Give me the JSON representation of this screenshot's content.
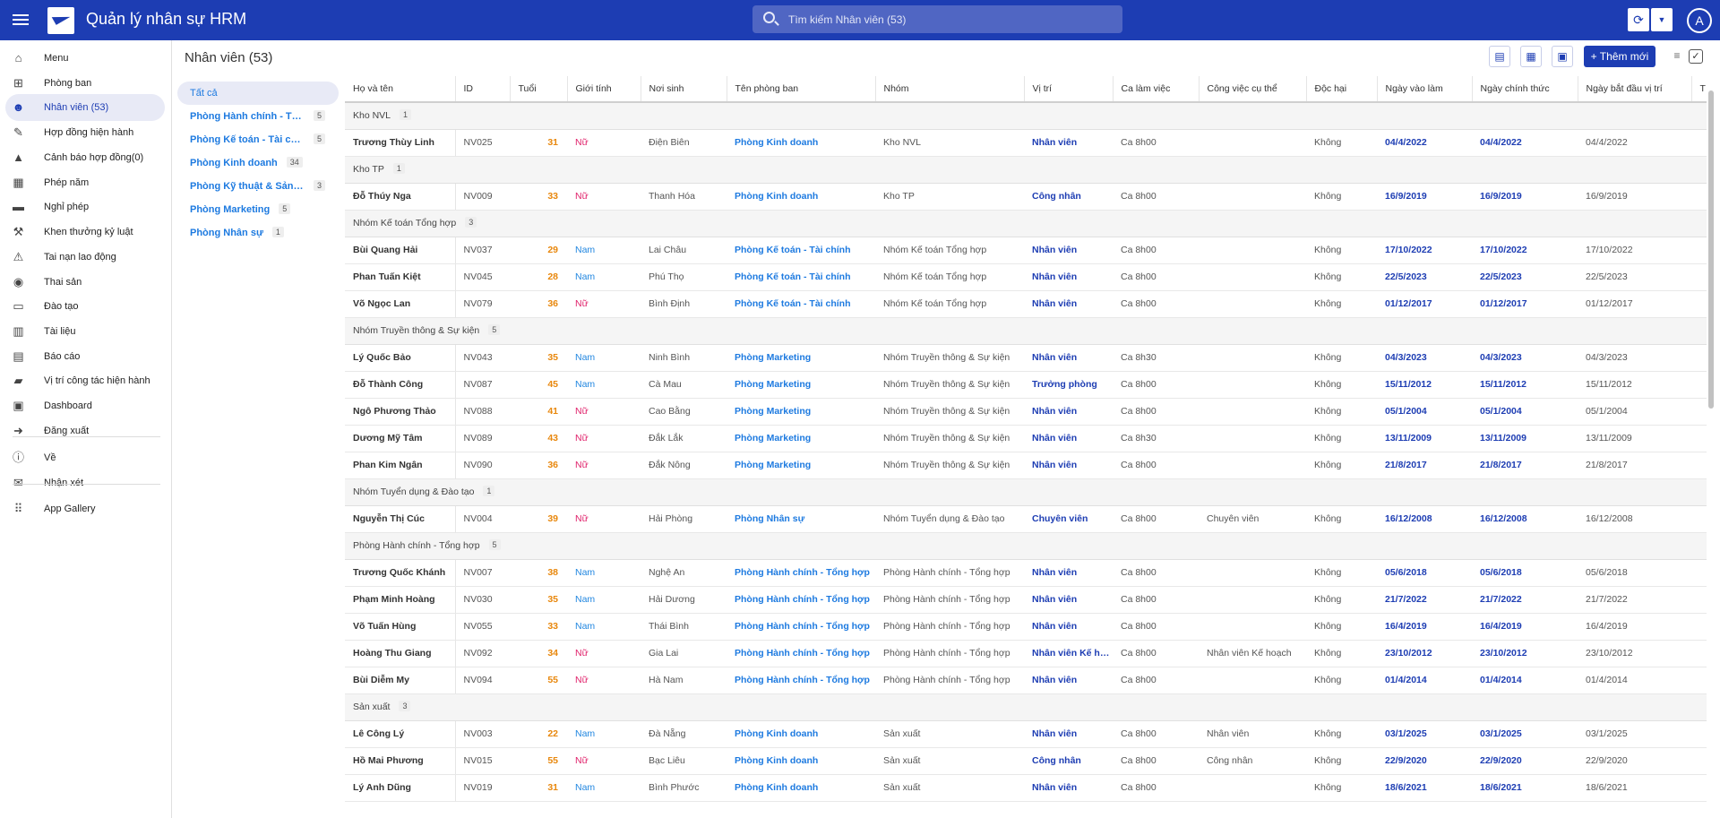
{
  "app": {
    "title": "Quản lý nhân sự HRM",
    "search_placeholder": "Tìm kiếm Nhân viên (53)",
    "avatar": "A"
  },
  "sidebar": [
    {
      "label": "Menu",
      "icon": "home-icon"
    },
    {
      "label": "Phòng ban",
      "icon": "org-chart-icon"
    },
    {
      "label": "Nhân viên (53)",
      "icon": "people-icon",
      "active": true
    },
    {
      "label": "Hợp đồng hiện hành",
      "icon": "contract-icon"
    },
    {
      "label": "Cảnh báo hợp đồng(0)",
      "icon": "warning-icon"
    },
    {
      "label": "Phép năm",
      "icon": "calendar-icon"
    },
    {
      "label": "Nghỉ phép",
      "icon": "bed-icon"
    },
    {
      "label": "Khen thưởng kỷ luật",
      "icon": "gavel-icon"
    },
    {
      "label": "Tai nạn lao động",
      "icon": "accident-icon"
    },
    {
      "label": "Thai sản",
      "icon": "stroller-icon"
    },
    {
      "label": "Đào tạo",
      "icon": "training-icon"
    },
    {
      "label": "Tài liệu",
      "icon": "books-icon"
    },
    {
      "label": "Báo cáo",
      "icon": "report-icon"
    },
    {
      "label": "Vị trí công tác hiện hành",
      "icon": "briefcase-icon"
    },
    {
      "label": "Dashboard",
      "icon": "dashboard-icon"
    },
    {
      "label": "Đăng xuất",
      "icon": "logout-icon"
    },
    {
      "label": "Về",
      "icon": "info-icon"
    },
    {
      "label": "Nhận xét",
      "icon": "feedback-icon"
    },
    {
      "label": "App Gallery",
      "icon": "apps-grid-icon"
    }
  ],
  "header": {
    "title": "Nhân viên (53)",
    "add_label": "+ Thêm mới"
  },
  "groups": [
    {
      "name": "Tất cả",
      "count": ""
    },
    {
      "name": "Phòng Hành chính - Tổng hợp",
      "count": "5"
    },
    {
      "name": "Phòng Kế toán - Tài chính",
      "count": "5"
    },
    {
      "name": "Phòng Kinh doanh",
      "count": "34"
    },
    {
      "name": "Phòng Kỹ thuật & Sản xuất",
      "count": "3"
    },
    {
      "name": "Phòng Marketing",
      "count": "5"
    },
    {
      "name": "Phòng Nhân sự",
      "count": "1"
    }
  ],
  "columns": [
    "Họ và tên",
    "ID",
    "Tuổi",
    "Giới tính",
    "Nơi sinh",
    "Tên phòng ban",
    "Nhóm",
    "Vị trí",
    "Ca làm việc",
    "Công việc cụ thể",
    "Độc hại",
    "Ngày vào làm",
    "Ngày chính thức",
    "Ngày bắt đầu vị trí",
    "T"
  ],
  "table": [
    {
      "group": "Kho NVL",
      "count": "1",
      "rows": [
        [
          "Trương Thùy Linh",
          "NV025",
          "31",
          "Nữ",
          "Điện Biên",
          "Phòng Kinh doanh",
          "Kho NVL",
          "Nhân viên",
          "Ca 8h00",
          "",
          "Không",
          "04/4/2022",
          "04/4/2022",
          "04/4/2022"
        ]
      ]
    },
    {
      "group": "Kho TP",
      "count": "1",
      "rows": [
        [
          "Đỗ Thúy Nga",
          "NV009",
          "33",
          "Nữ",
          "Thanh Hóa",
          "Phòng Kinh doanh",
          "Kho TP",
          "Công nhân",
          "Ca 8h00",
          "",
          "Không",
          "16/9/2019",
          "16/9/2019",
          "16/9/2019"
        ]
      ]
    },
    {
      "group": "Nhóm Kế toán Tổng hợp",
      "count": "3",
      "rows": [
        [
          "Bùi Quang Hải",
          "NV037",
          "29",
          "Nam",
          "Lai Châu",
          "Phòng Kế toán - Tài chính",
          "Nhóm Kế toán Tổng hợp",
          "Nhân viên",
          "Ca 8h00",
          "",
          "Không",
          "17/10/2022",
          "17/10/2022",
          "17/10/2022"
        ],
        [
          "Phan Tuấn Kiệt",
          "NV045",
          "28",
          "Nam",
          "Phú Thọ",
          "Phòng Kế toán - Tài chính",
          "Nhóm Kế toán Tổng hợp",
          "Nhân viên",
          "Ca 8h00",
          "",
          "Không",
          "22/5/2023",
          "22/5/2023",
          "22/5/2023"
        ],
        [
          "Võ Ngọc Lan",
          "NV079",
          "36",
          "Nữ",
          "Bình Định",
          "Phòng Kế toán - Tài chính",
          "Nhóm Kế toán Tổng hợp",
          "Nhân viên",
          "Ca 8h00",
          "",
          "Không",
          "01/12/2017",
          "01/12/2017",
          "01/12/2017"
        ]
      ]
    },
    {
      "group": "Nhóm Truyền thông & Sự kiện",
      "count": "5",
      "rows": [
        [
          "Lý Quốc Bảo",
          "NV043",
          "35",
          "Nam",
          "Ninh Bình",
          "Phòng Marketing",
          "Nhóm Truyền thông & Sự kiện",
          "Nhân viên",
          "Ca 8h30",
          "",
          "Không",
          "04/3/2023",
          "04/3/2023",
          "04/3/2023"
        ],
        [
          "Đỗ Thành Công",
          "NV087",
          "45",
          "Nam",
          "Cà Mau",
          "Phòng Marketing",
          "Nhóm Truyền thông & Sự kiện",
          "Trưởng phòng",
          "Ca 8h00",
          "",
          "Không",
          "15/11/2012",
          "15/11/2012",
          "15/11/2012"
        ],
        [
          "Ngô Phương Thảo",
          "NV088",
          "41",
          "Nữ",
          "Cao Bằng",
          "Phòng Marketing",
          "Nhóm Truyền thông & Sự kiện",
          "Nhân viên",
          "Ca 8h00",
          "",
          "Không",
          "05/1/2004",
          "05/1/2004",
          "05/1/2004"
        ],
        [
          "Dương Mỹ Tâm",
          "NV089",
          "43",
          "Nữ",
          "Đắk Lắk",
          "Phòng Marketing",
          "Nhóm Truyền thông & Sự kiện",
          "Nhân viên",
          "Ca 8h30",
          "",
          "Không",
          "13/11/2009",
          "13/11/2009",
          "13/11/2009"
        ],
        [
          "Phan Kim Ngân",
          "NV090",
          "36",
          "Nữ",
          "Đắk Nông",
          "Phòng Marketing",
          "Nhóm Truyền thông & Sự kiện",
          "Nhân viên",
          "Ca 8h00",
          "",
          "Không",
          "21/8/2017",
          "21/8/2017",
          "21/8/2017"
        ]
      ]
    },
    {
      "group": "Nhóm Tuyển dụng & Đào tạo",
      "count": "1",
      "rows": [
        [
          "Nguyễn Thị Cúc",
          "NV004",
          "39",
          "Nữ",
          "Hải Phòng",
          "Phòng Nhân sự",
          "Nhóm Tuyển dụng & Đào tạo",
          "Chuyên viên",
          "Ca 8h00",
          "Chuyên viên",
          "Không",
          "16/12/2008",
          "16/12/2008",
          "16/12/2008"
        ]
      ]
    },
    {
      "group": "Phòng Hành chính - Tổng hợp",
      "count": "5",
      "rows": [
        [
          "Trương Quốc Khánh",
          "NV007",
          "38",
          "Nam",
          "Nghệ An",
          "Phòng Hành chính - Tổng hợp",
          "Phòng Hành chính - Tổng hợp",
          "Nhân viên",
          "Ca 8h00",
          "",
          "Không",
          "05/6/2018",
          "05/6/2018",
          "05/6/2018"
        ],
        [
          "Phạm Minh Hoàng",
          "NV030",
          "35",
          "Nam",
          "Hải Dương",
          "Phòng Hành chính - Tổng hợp",
          "Phòng Hành chính - Tổng hợp",
          "Nhân viên",
          "Ca 8h00",
          "",
          "Không",
          "21/7/2022",
          "21/7/2022",
          "21/7/2022"
        ],
        [
          "Võ Tuấn Hùng",
          "NV055",
          "33",
          "Nam",
          "Thái Bình",
          "Phòng Hành chính - Tổng hợp",
          "Phòng Hành chính - Tổng hợp",
          "Nhân viên",
          "Ca 8h00",
          "",
          "Không",
          "16/4/2019",
          "16/4/2019",
          "16/4/2019"
        ],
        [
          "Hoàng Thu Giang",
          "NV092",
          "34",
          "Nữ",
          "Gia Lai",
          "Phòng Hành chính - Tổng hợp",
          "Phòng Hành chính - Tổng hợp",
          "Nhân viên Kế hoạch",
          "Ca 8h00",
          "Nhân viên Kế hoạch",
          "Không",
          "23/10/2012",
          "23/10/2012",
          "23/10/2012"
        ],
        [
          "Bùi Diễm My",
          "NV094",
          "55",
          "Nữ",
          "Hà Nam",
          "Phòng Hành chính - Tổng hợp",
          "Phòng Hành chính - Tổng hợp",
          "Nhân viên",
          "Ca 8h00",
          "",
          "Không",
          "01/4/2014",
          "01/4/2014",
          "01/4/2014"
        ]
      ]
    },
    {
      "group": "Sản xuất",
      "count": "3",
      "rows": [
        [
          "Lê Công Lý",
          "NV003",
          "22",
          "Nam",
          "Đà Nẵng",
          "Phòng Kinh doanh",
          "Sản xuất",
          "Nhân viên",
          "Ca 8h00",
          "Nhân viên",
          "Không",
          "03/1/2025",
          "03/1/2025",
          "03/1/2025"
        ],
        [
          "Hồ Mai Phương",
          "NV015",
          "55",
          "Nữ",
          "Bạc Liêu",
          "Phòng Kinh doanh",
          "Sản xuất",
          "Công nhân",
          "Ca 8h00",
          "Công nhân",
          "Không",
          "22/9/2020",
          "22/9/2020",
          "22/9/2020"
        ],
        [
          "Lý Anh Dũng",
          "NV019",
          "31",
          "Nam",
          "Bình Phước",
          "Phòng Kinh doanh",
          "Sản xuất",
          "Nhân viên",
          "Ca 8h00",
          "",
          "Không",
          "18/6/2021",
          "18/6/2021",
          "18/6/2021"
        ]
      ]
    }
  ]
}
